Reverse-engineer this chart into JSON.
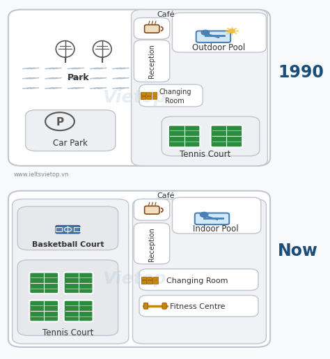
{
  "bg_color": "#f8f9fa",
  "map_bg": "#ffffff",
  "panel_bg": "#f0f2f5",
  "box_bg": "#e8eaed",
  "white_box": "#ffffff",
  "border_color": "#c8cacf",
  "text_dark": "#2d2d2d",
  "text_medium": "#444444",
  "green_court": "#2d8a3e",
  "blue_pool": "#4a7fb5",
  "orange_icon": "#c8860a",
  "year_color": "#1a4d7a",
  "watermark_color": "#b8c8d8",
  "website_color": "#888888",
  "year1": "1990",
  "year2": "Now",
  "website": "www.ieltsvietop.vn"
}
